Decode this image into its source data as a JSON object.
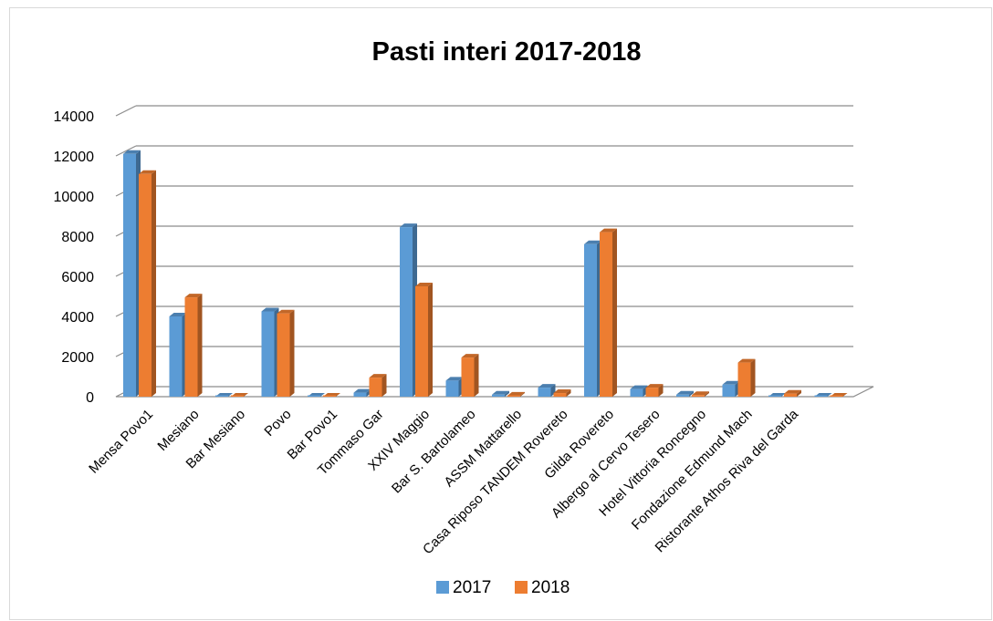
{
  "chart_data": {
    "type": "bar",
    "title": "Pasti interi 2017-2018",
    "categories": [
      "Mensa Povo1",
      "Mesiano",
      "Bar Mesiano",
      "Povo",
      "Bar Povo1",
      "Tommaso Gar",
      "XXIV Maggio",
      "Bar S. Bartolameo",
      "ASSM Mattarello",
      "Casa Riposo TANDEM Rovereto",
      "Gilda Rovereto",
      "Albergo al Cervo Tesero",
      "Hotel Vittoria Roncegno",
      "Fondazione  Edmund Mach",
      "Ristorante Athos Riva del Garda",
      ""
    ],
    "series": [
      {
        "name": "2017",
        "color": "#5b9bd5",
        "values": [
          12100,
          4000,
          0,
          4250,
          0,
          200,
          8450,
          800,
          100,
          450,
          7600,
          380,
          100,
          600,
          0,
          0
        ]
      },
      {
        "name": "2018",
        "color": "#ed7d31",
        "values": [
          11100,
          4950,
          0,
          4150,
          0,
          950,
          5500,
          1950,
          50,
          180,
          8200,
          450,
          80,
          1700,
          150,
          0
        ]
      }
    ],
    "yticks": [
      "0",
      "2000",
      "4000",
      "6000",
      "8000",
      "10000",
      "12000",
      "14000"
    ],
    "ylim": [
      0,
      14000
    ],
    "grid": true,
    "legend_position": "bottom",
    "view": "3d-clustered-column"
  }
}
